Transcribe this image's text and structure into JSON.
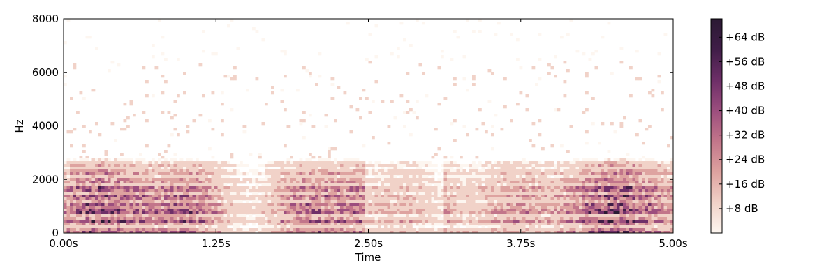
{
  "chart_data": {
    "type": "heatmap",
    "title": "",
    "xlabel": "Time",
    "ylabel": "Hz",
    "xlim": [
      0,
      5.0
    ],
    "ylim": [
      0,
      8000
    ],
    "x_ticks": [
      {
        "value": 0.0,
        "label": "0.00s"
      },
      {
        "value": 1.25,
        "label": "1.25s"
      },
      {
        "value": 2.5,
        "label": "2.50s"
      },
      {
        "value": 3.75,
        "label": "3.75s"
      },
      {
        "value": 5.0,
        "label": "5.00s"
      }
    ],
    "y_ticks": [
      {
        "value": 0,
        "label": "0"
      },
      {
        "value": 2000,
        "label": "2000"
      },
      {
        "value": 4000,
        "label": "4000"
      },
      {
        "value": 6000,
        "label": "6000"
      },
      {
        "value": 8000,
        "label": "8000"
      }
    ],
    "colorbar": {
      "range": [
        0,
        70
      ],
      "ticks": [
        {
          "value": 8,
          "label": "+8 dB"
        },
        {
          "value": 16,
          "label": "+16 dB"
        },
        {
          "value": 24,
          "label": "+24 dB"
        },
        {
          "value": 32,
          "label": "+32 dB"
        },
        {
          "value": 40,
          "label": "+40 dB"
        },
        {
          "value": 48,
          "label": "+48 dB"
        },
        {
          "value": 56,
          "label": "+56 dB"
        },
        {
          "value": 64,
          "label": "+64 dB"
        }
      ],
      "colors": [
        "#fdf6f0",
        "#f1d2c8",
        "#dea3a0",
        "#c2758a",
        "#9c4e7e",
        "#6e2f68",
        "#3f1d47",
        "#2b1a33"
      ]
    },
    "harmonic_bands_hz": [
      {
        "center": 100,
        "strength": 30
      },
      {
        "center": 500,
        "strength": 40
      },
      {
        "center": 850,
        "strength": 46
      },
      {
        "center": 1100,
        "strength": 34
      },
      {
        "center": 1400,
        "strength": 40
      },
      {
        "center": 1700,
        "strength": 38
      },
      {
        "center": 2000,
        "strength": 26
      },
      {
        "center": 2300,
        "strength": 22
      },
      {
        "center": 2600,
        "strength": 14
      }
    ],
    "silent_interval_s": [
      2.45,
      3.1
    ]
  }
}
